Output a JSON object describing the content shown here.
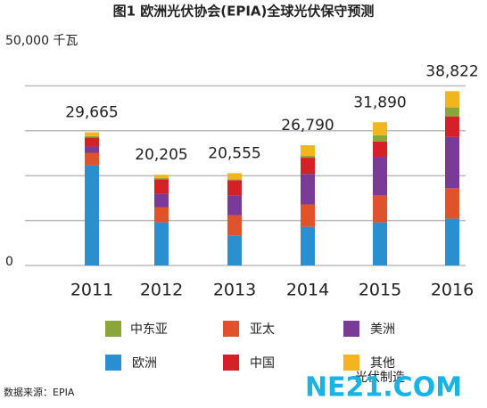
{
  "chart_data": {
    "type": "stacked_bar",
    "title": "图1 欧洲光伏协会(EPIA)全球光伏保守预测",
    "categories": [
      "2011",
      "2012",
      "2013",
      "2014",
      "2015",
      "2016"
    ],
    "series": [
      {
        "name": "欧洲",
        "color": "#2a8fcf",
        "values": [
          22300,
          9600,
          6600,
          8600,
          9600,
          10400
        ]
      },
      {
        "name": "亚太",
        "color": "#e0522a",
        "values": [
          2800,
          3400,
          4600,
          5000,
          6000,
          6800
        ]
      },
      {
        "name": "美洲",
        "color": "#7a3a98",
        "values": [
          1400,
          3000,
          4400,
          6800,
          8600,
          11400
        ]
      },
      {
        "name": "中国",
        "color": "#d42128",
        "values": [
          2000,
          3200,
          3400,
          3600,
          3400,
          4600
        ]
      },
      {
        "name": "中东亚",
        "color": "#8aa63a",
        "values": [
          300,
          300,
          200,
          400,
          1400,
          2000
        ]
      },
      {
        "name": "其他",
        "color": "#f3b51d",
        "values": [
          865,
          705,
          1355,
          2390,
          2890,
          3622
        ]
      }
    ],
    "totals": [
      29665,
      20205,
      20555,
      26790,
      31890,
      38822
    ],
    "total_labels": [
      "29,665",
      "20,205",
      "20,555",
      "26,790",
      "31,890",
      "38,822"
    ],
    "ylim": [
      0,
      50000
    ],
    "yticks": [
      0,
      {
        "value": 50000,
        "label": "50,000 千瓦"
      }
    ],
    "grid_lines": [
      0,
      10000,
      20000,
      30000,
      40000
    ],
    "source": "数据来源：EPIA",
    "watermark": "光伏制造",
    "watermark_logo": "NE21.COM"
  }
}
